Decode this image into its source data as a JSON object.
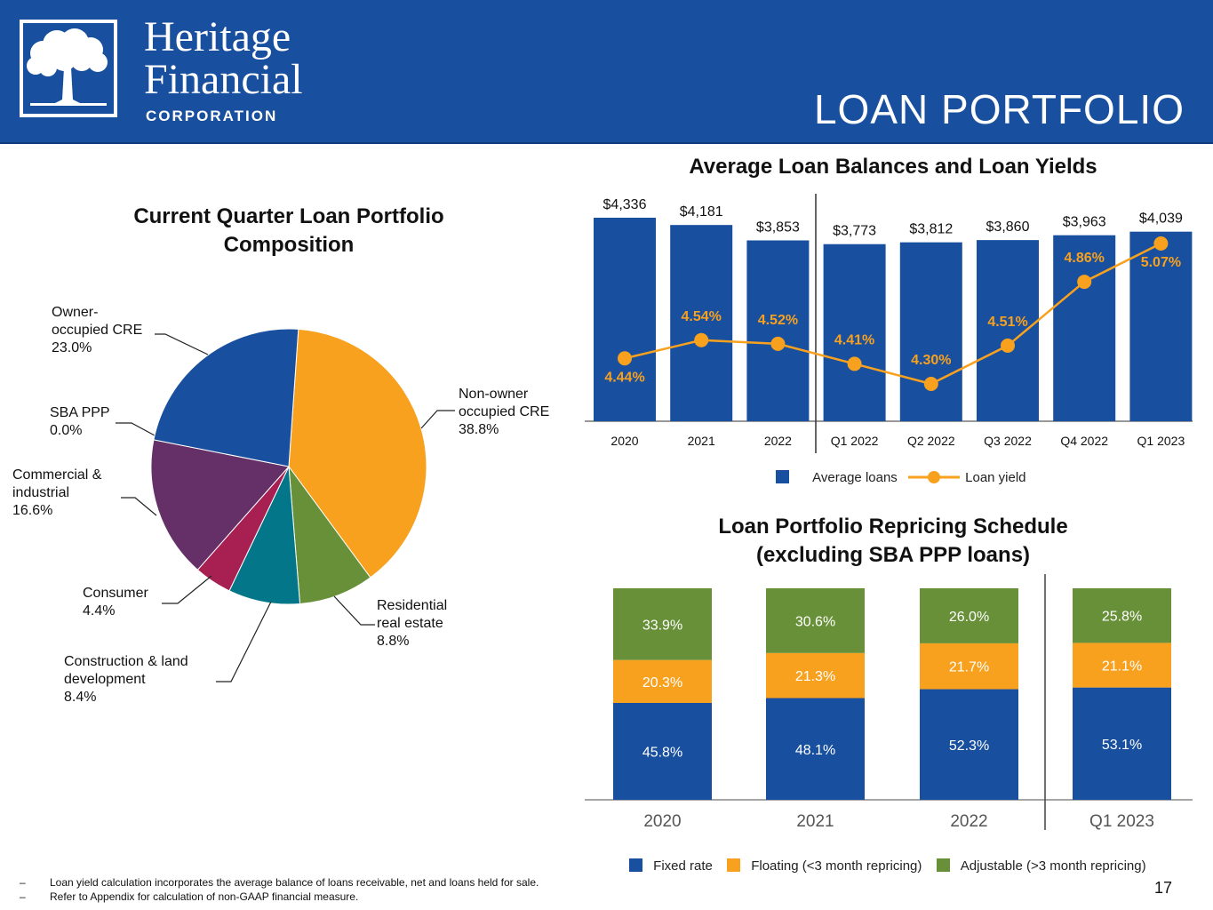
{
  "header": {
    "logo_line1": "Heritage",
    "logo_line2": "Financial",
    "logo_line3": "CORPORATION",
    "title": "LOAN PORTFOLIO",
    "bg_color": "#184f9e"
  },
  "footnotes": [
    "Loan yield calculation incorporates the average balance of loans receivable, net and loans held for sale.",
    "Refer to Appendix for calculation of non-GAAP financial measure."
  ],
  "footnote_dash": "–",
  "page_number": "17",
  "chart_data": [
    {
      "id": "composition",
      "type": "pie",
      "title": "Current Quarter Loan Portfolio Composition",
      "title_line1": "Current Quarter Loan Portfolio",
      "title_line2": "Composition",
      "slices": [
        {
          "label_lines": [
            "Non-owner",
            "occupied CRE"
          ],
          "value": 38.8,
          "value_label": "38.8%",
          "color": "#f7a11f"
        },
        {
          "label_lines": [
            "Residential",
            "real estate"
          ],
          "value": 8.8,
          "value_label": "8.8%",
          "color": "#679038"
        },
        {
          "label_lines": [
            "Construction & land",
            "development"
          ],
          "value": 8.4,
          "value_label": "8.4%",
          "color": "#037789"
        },
        {
          "label_lines": [
            "Consumer"
          ],
          "value": 4.4,
          "value_label": "4.4%",
          "color": "#a81f52"
        },
        {
          "label_lines": [
            "Commercial &",
            "industrial"
          ],
          "value": 16.6,
          "value_label": "16.6%",
          "color": "#652f68"
        },
        {
          "label_lines": [
            "SBA PPP"
          ],
          "value": 0.0,
          "value_label": "0.0%",
          "color": "#184f9e"
        },
        {
          "label_lines": [
            "Owner-",
            "occupied CRE"
          ],
          "value": 23.0,
          "value_label": "23.0%",
          "color": "#184f9e"
        }
      ]
    },
    {
      "id": "balances",
      "type": "bar",
      "title": "Average Loan Balances and Loan Yields",
      "categories": [
        "2020",
        "2021",
        "2022",
        "Q1 2022",
        "Q2 2022",
        "Q3 2022",
        "Q4 2022",
        "Q1 2023"
      ],
      "series": [
        {
          "name": "Average loans",
          "values": [
            4336,
            4181,
            3853,
            3773,
            3812,
            3860,
            3963,
            4039
          ],
          "labels": [
            "$4,336",
            "$4,181",
            "$3,853",
            "$3,773",
            "$3,812",
            "$3,860",
            "$3,963",
            "$4,039"
          ],
          "color": "#184f9e"
        },
        {
          "name": "Loan yield",
          "values": [
            4.44,
            4.54,
            4.52,
            4.41,
            4.3,
            4.51,
            4.86,
            5.07
          ],
          "labels": [
            "4.44%",
            "4.54%",
            "4.52%",
            "4.41%",
            "4.30%",
            "4.51%",
            "4.86%",
            "5.07%"
          ],
          "color": "#f7a11f"
        }
      ]
    },
    {
      "id": "repricing",
      "type": "bar",
      "stacked": true,
      "title": "Loan Portfolio Repricing Schedule (excluding SBA PPP loans)",
      "title_line1": "Loan Portfolio Repricing Schedule",
      "title_line2": "(excluding SBA PPP loans)",
      "categories": [
        "2020",
        "2021",
        "2022",
        "Q1 2023"
      ],
      "series": [
        {
          "name": "Fixed rate",
          "values": [
            45.8,
            48.1,
            52.3,
            53.1
          ],
          "labels": [
            "45.8%",
            "48.1%",
            "52.3%",
            "53.1%"
          ],
          "color": "#184f9e"
        },
        {
          "name": "Floating (<3 month repricing)",
          "values": [
            20.3,
            21.3,
            21.7,
            21.1
          ],
          "labels": [
            "20.3%",
            "21.3%",
            "21.7%",
            "21.1%"
          ],
          "color": "#f7a11f"
        },
        {
          "name": "Adjustable (>3 month repricing)",
          "values": [
            33.9,
            30.6,
            26.0,
            25.8
          ],
          "labels": [
            "33.9%",
            "30.6%",
            "26.0%",
            "25.8%"
          ],
          "color": "#679038"
        }
      ]
    }
  ]
}
